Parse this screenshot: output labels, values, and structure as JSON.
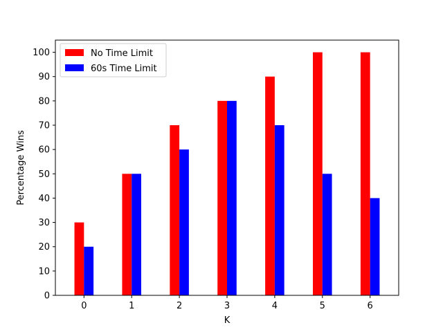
{
  "chart_data": {
    "type": "bar",
    "categories": [
      "0",
      "1",
      "2",
      "3",
      "4",
      "5",
      "6"
    ],
    "series": [
      {
        "name": "No Time Limit",
        "color": "#ff0000",
        "values": [
          30,
          50,
          70,
          80,
          90,
          100,
          100
        ]
      },
      {
        "name": "60s Time Limit",
        "color": "#0000ff",
        "values": [
          20,
          50,
          60,
          80,
          70,
          50,
          40
        ]
      }
    ],
    "title": "",
    "xlabel": "K",
    "ylabel": "Percentage Wins",
    "ylim": [
      0,
      105
    ],
    "yticks": [
      0,
      10,
      20,
      30,
      40,
      50,
      60,
      70,
      80,
      90,
      100
    ],
    "grid": false,
    "legend_position": "top-left"
  }
}
